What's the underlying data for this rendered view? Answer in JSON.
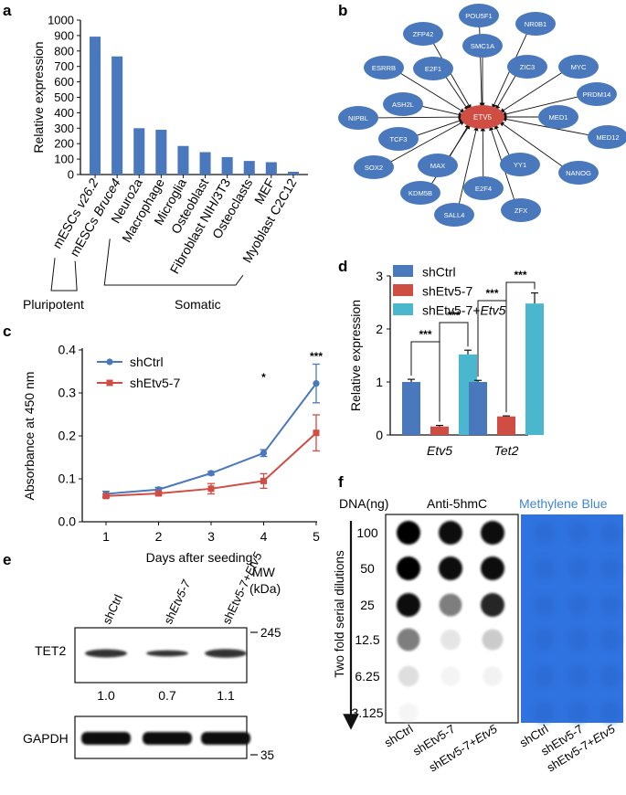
{
  "panels": {
    "a": "a",
    "b": "b",
    "c": "c",
    "d": "d",
    "e": "e",
    "f": "f"
  },
  "chart_data": [
    {
      "panel": "a",
      "type": "bar",
      "categories": [
        "mESCs v26.2",
        "mESCs Bruce4",
        "Neuro2a",
        "Macrophage",
        "Microglia",
        "Osteoblast",
        "Fibroblast NIH/3T3",
        "Osteoclasts",
        "MEF",
        "Myoblast C2C12"
      ],
      "category_italic_parts": [
        "v26.2",
        "Bruce4"
      ],
      "values": [
        893,
        765,
        300,
        290,
        185,
        145,
        113,
        88,
        80,
        18
      ],
      "ylabel": "Relative expression",
      "ylim": [
        0,
        1000
      ],
      "yticks": [
        "0",
        "100",
        "200",
        "300",
        "400",
        "500",
        "600",
        "700",
        "800",
        "900",
        "1000"
      ],
      "groups": [
        {
          "label": "Pluripotent",
          "members": [
            "mESCs v26.2",
            "mESCs Bruce4"
          ]
        },
        {
          "label": "Somatic",
          "members": [
            "Neuro2a",
            "Macrophage",
            "Microglia",
            "Osteoblast",
            "Fibroblast NIH/3T3",
            "Osteoclasts",
            "MEF",
            "Myoblast C2C12"
          ]
        }
      ],
      "color": "#4a78bd"
    },
    {
      "panel": "b",
      "type": "network",
      "center": "ETV5",
      "nodes": [
        "POU5F1",
        "NR0B1",
        "ZFP42",
        "SMC1A",
        "ESRRB",
        "E2F1",
        "ZIC3",
        "MYC",
        "ASH2L",
        "PRDM14",
        "NIPBL",
        "MED1",
        "TCF3",
        "MED12",
        "SOX2",
        "MAX",
        "YY1",
        "NANOG",
        "KDM5B",
        "E2F4",
        "SALL4",
        "ZFX"
      ],
      "center_color": "#cf4d43",
      "node_color": "#4a78bd"
    },
    {
      "panel": "c",
      "type": "line",
      "x": [
        1,
        2,
        3,
        4,
        5
      ],
      "series": [
        {
          "name": "shCtrl",
          "values": [
            0.065,
            0.075,
            0.113,
            0.16,
            0.322
          ],
          "errors": [
            0.006,
            0.005,
            0.004,
            0.008,
            0.045
          ],
          "color": "#4a78bd"
        },
        {
          "name": "shEtv5-7",
          "values": [
            0.06,
            0.066,
            0.077,
            0.095,
            0.207
          ],
          "errors": [
            0.004,
            0.004,
            0.012,
            0.017,
            0.042
          ],
          "color": "#cf4d43"
        }
      ],
      "xlabel": "Days after seeding",
      "ylabel": "Absorbance at 450 nm",
      "ylim": [
        0,
        0.4
      ],
      "yticks": [
        "0.0",
        "0.1",
        "0.2",
        "0.3",
        "0.4"
      ],
      "xticks": [
        "1",
        "2",
        "3",
        "4",
        "5"
      ],
      "annotations": [
        {
          "x": 4,
          "text": "*"
        },
        {
          "x": 5,
          "text": "***"
        }
      ],
      "legend": "top-left"
    },
    {
      "panel": "d",
      "type": "bar",
      "categories": [
        "Etv5",
        "Tet2"
      ],
      "series": [
        {
          "name": "shCtrl",
          "values": [
            1.0,
            1.0
          ],
          "errors": [
            0.05,
            0.03
          ],
          "color": "#4a78bd"
        },
        {
          "name": "shEtv5-7",
          "values": [
            0.16,
            0.35
          ],
          "errors": [
            0.02,
            0.01
          ],
          "color": "#cf4d43"
        },
        {
          "name": "shEtv5-7+Etv5",
          "name_plain": "shEtv5-7+",
          "name_italic": "Etv5",
          "values": [
            1.52,
            2.48
          ],
          "errors": [
            0.08,
            0.2
          ],
          "color": "#4bb7cf"
        }
      ],
      "ylabel": "Relative expression",
      "ylim": [
        0,
        3
      ],
      "yticks": [
        "0",
        "1",
        "2",
        "3"
      ],
      "significance": "***",
      "legend": "top-left"
    }
  ],
  "panel_e": {
    "mw_label": "MW",
    "mw_unit": "(kDa)",
    "lanes": [
      {
        "plain": "shCtrl",
        "italic": ""
      },
      {
        "plain": "sh",
        "italic": "Etv5-7"
      },
      {
        "plain": "shEtv5-7+",
        "italic": "Etv5"
      }
    ],
    "proteins": [
      "TET2",
      "GAPDH"
    ],
    "ratios": [
      "1.0",
      "0.7",
      "1.1"
    ],
    "markers": [
      "245",
      "35"
    ]
  },
  "panel_f": {
    "dna_label": "DNA(ng)",
    "stain1": "Anti-5hmC",
    "stain2": "Methylene Blue",
    "stain2_color": "#3f86d6",
    "dilution_label": "Two fold serial dilutions",
    "amounts": [
      "100",
      "50",
      "25",
      "12.5",
      "6.25",
      "3.125"
    ],
    "lanes": [
      {
        "plain": "shCtrl",
        "italic": ""
      },
      {
        "plain": "shEtv5-7",
        "italic": ""
      },
      {
        "plain": "shEtv5-7+",
        "italic": "Etv5"
      },
      {
        "plain": "shCtrl",
        "italic": ""
      },
      {
        "plain": "shEtv5-7",
        "italic": ""
      },
      {
        "plain": "shEtv5-7+",
        "italic": "Etv5"
      }
    ],
    "dot_intensity": [
      [
        1.0,
        0.95,
        0.95
      ],
      [
        1.0,
        0.95,
        0.95
      ],
      [
        0.95,
        0.6,
        0.85
      ],
      [
        0.6,
        0.15,
        0.3
      ],
      [
        0.2,
        0.03,
        0.05
      ],
      [
        0.02,
        0.0,
        0.0
      ]
    ],
    "membrane_color": "#2f73e0"
  }
}
